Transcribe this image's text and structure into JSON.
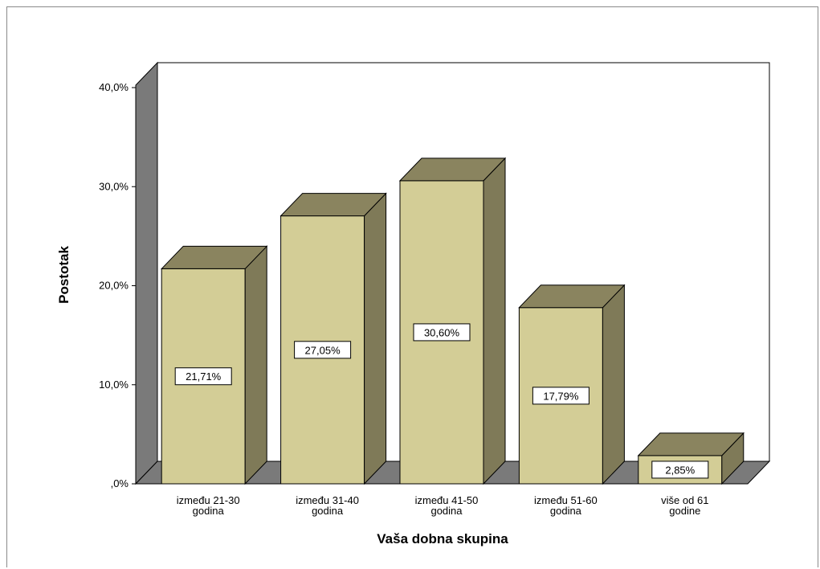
{
  "chart_data": {
    "type": "bar",
    "categories": [
      [
        "između 21-30",
        "godina"
      ],
      [
        "između 31-40",
        "godina"
      ],
      [
        "između 41-50",
        "godina"
      ],
      [
        "između 51-60",
        "godina"
      ],
      [
        "više od 61",
        "godine"
      ]
    ],
    "values": [
      21.71,
      27.05,
      30.6,
      17.79,
      2.85
    ],
    "data_labels": [
      "21,71%",
      "27,05%",
      "30,60%",
      "17,79%",
      "2,85%"
    ],
    "xlabel": "Vaša dobna skupina",
    "ylabel": "Postotak",
    "ylim": [
      0,
      40
    ],
    "yticks": [
      0,
      10,
      20,
      30,
      40
    ],
    "ytick_labels": [
      ",0%",
      "10,0%",
      "20,0%",
      "30,0%",
      "40,0%"
    ],
    "grid": false,
    "style": "3d",
    "colors": {
      "bar_front": "#d3cd96",
      "bar_side": "#7f7a58",
      "bar_top": "#8a845f",
      "wall": "#7a7a7a",
      "floor": "#7a7a7a"
    }
  }
}
